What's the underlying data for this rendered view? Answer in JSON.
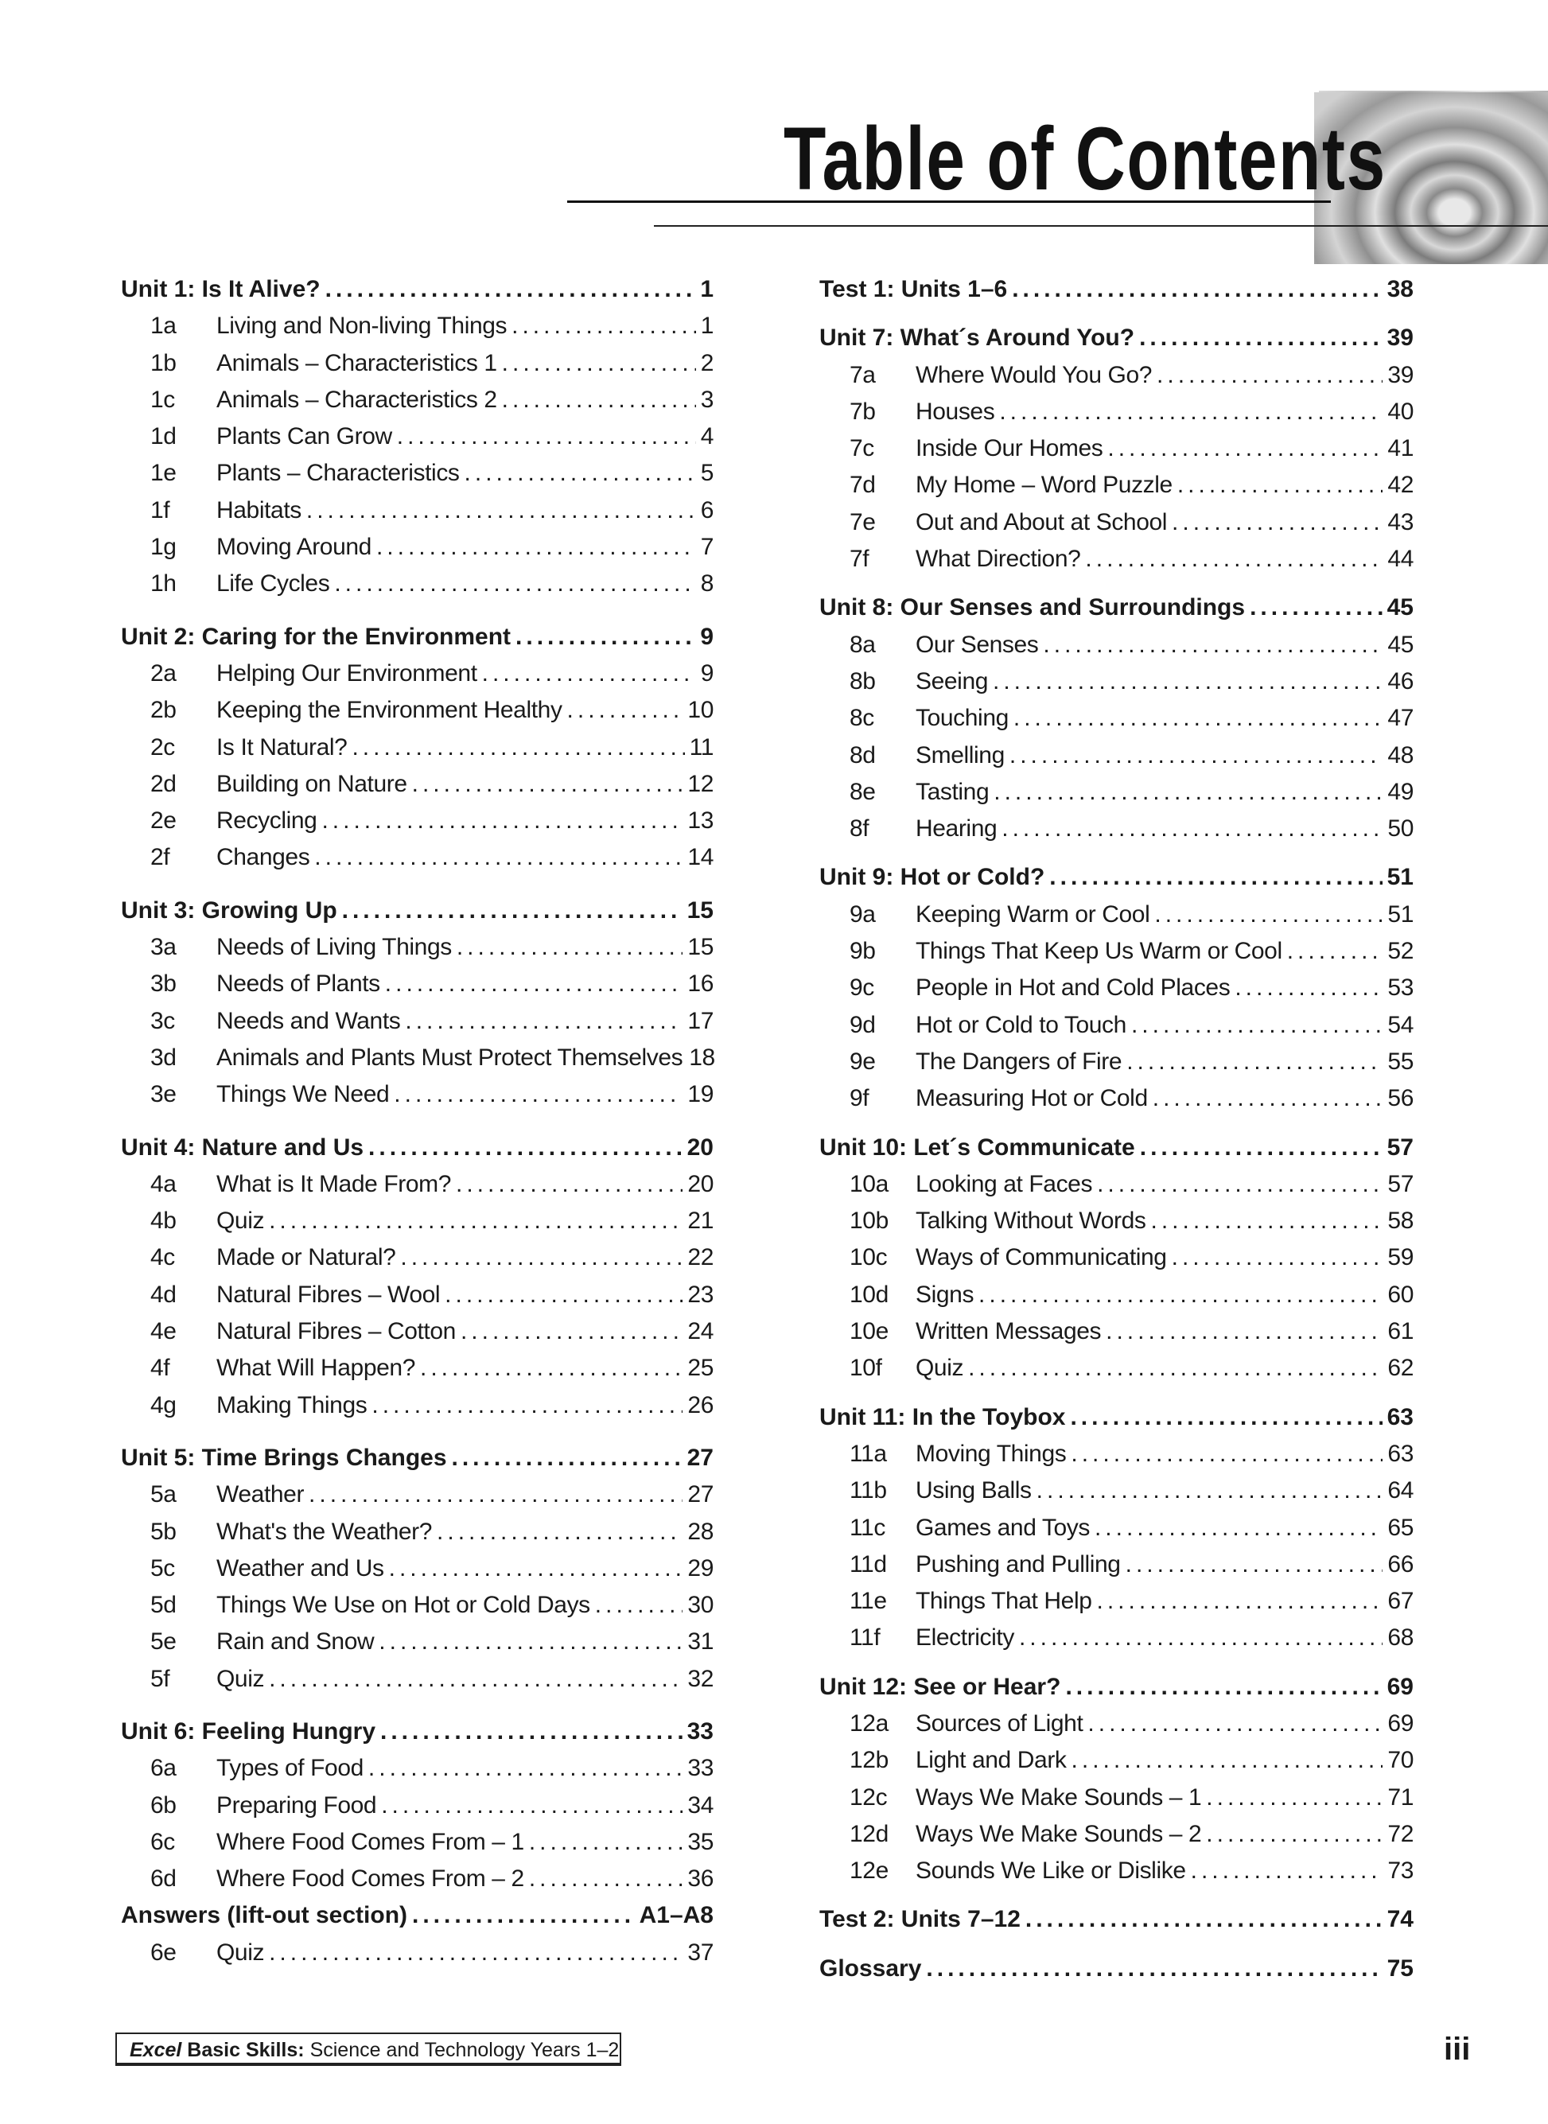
{
  "header": {
    "title": "Table of Contents"
  },
  "left_column": [
    {
      "type": "unit",
      "label": "Unit 1: Is It Alive?",
      "page": "1"
    },
    {
      "type": "item",
      "num": "1a",
      "label": "Living and Non-living Things",
      "page": "1"
    },
    {
      "type": "item",
      "num": "1b",
      "label": "Animals – Characteristics 1",
      "page": "2"
    },
    {
      "type": "item",
      "num": "1c",
      "label": "Animals – Characteristics 2",
      "page": "3"
    },
    {
      "type": "item",
      "num": "1d",
      "label": "Plants Can Grow",
      "page": "4"
    },
    {
      "type": "item",
      "num": "1e",
      "label": "Plants – Characteristics",
      "page": "5"
    },
    {
      "type": "item",
      "num": "1f",
      "label": "Habitats",
      "page": "6"
    },
    {
      "type": "item",
      "num": "1g",
      "label": "Moving Around",
      "page": "7"
    },
    {
      "type": "item",
      "num": "1h",
      "label": "Life Cycles",
      "page": "8"
    },
    {
      "type": "unit",
      "label": "Unit 2: Caring for the Environment",
      "page": "9"
    },
    {
      "type": "item",
      "num": "2a",
      "label": "Helping Our Environment",
      "page": "9"
    },
    {
      "type": "item",
      "num": "2b",
      "label": "Keeping the Environment Healthy",
      "page": "10"
    },
    {
      "type": "item",
      "num": "2c",
      "label": "Is It Natural?",
      "page": "11"
    },
    {
      "type": "item",
      "num": "2d",
      "label": "Building on Nature",
      "page": "12"
    },
    {
      "type": "item",
      "num": "2e",
      "label": "Recycling",
      "page": "13"
    },
    {
      "type": "item",
      "num": "2f",
      "label": "Changes",
      "page": "14"
    },
    {
      "type": "unit",
      "label": "Unit 3: Growing Up",
      "page": "15"
    },
    {
      "type": "item",
      "num": "3a",
      "label": "Needs of Living Things",
      "page": "15"
    },
    {
      "type": "item",
      "num": "3b",
      "label": "Needs of Plants",
      "page": "16"
    },
    {
      "type": "item",
      "num": "3c",
      "label": "Needs and Wants",
      "page": "17"
    },
    {
      "type": "item",
      "num": "3d",
      "label": "Animals and Plants Must Protect Themselves",
      "page": "18",
      "nodots": true
    },
    {
      "type": "item",
      "num": "3e",
      "label": "Things We Need",
      "page": "19"
    },
    {
      "type": "unit",
      "label": "Unit 4: Nature and Us",
      "page": "20"
    },
    {
      "type": "item",
      "num": "4a",
      "label": "What is It Made From?",
      "page": "20"
    },
    {
      "type": "item",
      "num": "4b",
      "label": "Quiz",
      "page": "21"
    },
    {
      "type": "item",
      "num": "4c",
      "label": "Made or Natural?",
      "page": "22"
    },
    {
      "type": "item",
      "num": "4d",
      "label": "Natural Fibres – Wool",
      "page": "23"
    },
    {
      "type": "item",
      "num": "4e",
      "label": "Natural Fibres – Cotton",
      "page": "24"
    },
    {
      "type": "item",
      "num": "4f",
      "label": "What Will Happen?",
      "page": "25"
    },
    {
      "type": "item",
      "num": "4g",
      "label": "Making Things",
      "page": "26"
    },
    {
      "type": "unit",
      "label": "Unit 5: Time Brings Changes",
      "page": "27"
    },
    {
      "type": "item",
      "num": "5a",
      "label": "Weather",
      "page": "27"
    },
    {
      "type": "item",
      "num": "5b",
      "label": "What's the Weather?",
      "page": "28"
    },
    {
      "type": "item",
      "num": "5c",
      "label": "Weather and Us",
      "page": "29"
    },
    {
      "type": "item",
      "num": "5d",
      "label": "Things We Use on Hot or Cold Days",
      "page": "30"
    },
    {
      "type": "item",
      "num": "5e",
      "label": "Rain and Snow",
      "page": "31"
    },
    {
      "type": "item",
      "num": "5f",
      "label": "Quiz",
      "page": "32"
    },
    {
      "type": "unit",
      "label": "Unit 6: Feeling Hungry",
      "page": "33"
    },
    {
      "type": "item",
      "num": "6a",
      "label": "Types of Food",
      "page": "33"
    },
    {
      "type": "item",
      "num": "6b",
      "label": "Preparing Food",
      "page": "34"
    },
    {
      "type": "item",
      "num": "6c",
      "label": "Where Food Comes From – 1",
      "page": "35"
    },
    {
      "type": "item",
      "num": "6d",
      "label": "Where Food Comes From – 2",
      "page": "36"
    },
    {
      "type": "unit",
      "label": "Answers (lift-out section)",
      "page": "A1–A8",
      "nogap": true
    },
    {
      "type": "item",
      "num": "6e",
      "label": "Quiz",
      "page": "37"
    }
  ],
  "right_column": [
    {
      "type": "unit",
      "label": "Test 1: Units 1–6",
      "page": "38"
    },
    {
      "type": "unit",
      "label": "Unit 7: What´s Around You?",
      "page": "39"
    },
    {
      "type": "item",
      "num": "7a",
      "label": "Where Would You Go?",
      "page": "39"
    },
    {
      "type": "item",
      "num": "7b",
      "label": "Houses",
      "page": "40"
    },
    {
      "type": "item",
      "num": "7c",
      "label": "Inside Our Homes",
      "page": "41"
    },
    {
      "type": "item",
      "num": "7d",
      "label": "My Home – Word Puzzle",
      "page": "42"
    },
    {
      "type": "item",
      "num": "7e",
      "label": "Out and About at School",
      "page": "43"
    },
    {
      "type": "item",
      "num": "7f",
      "label": "What Direction?",
      "page": "44"
    },
    {
      "type": "unit",
      "label": "Unit 8: Our Senses and Surroundings",
      "page": "45"
    },
    {
      "type": "item",
      "num": "8a",
      "label": "Our Senses",
      "page": "45"
    },
    {
      "type": "item",
      "num": "8b",
      "label": "Seeing",
      "page": "46"
    },
    {
      "type": "item",
      "num": "8c",
      "label": "Touching",
      "page": "47"
    },
    {
      "type": "item",
      "num": "8d",
      "label": "Smelling",
      "page": "48"
    },
    {
      "type": "item",
      "num": "8e",
      "label": "Tasting",
      "page": "49"
    },
    {
      "type": "item",
      "num": "8f",
      "label": "Hearing",
      "page": "50"
    },
    {
      "type": "unit",
      "label": "Unit 9: Hot or Cold?",
      "page": "51"
    },
    {
      "type": "item",
      "num": "9a",
      "label": "Keeping Warm or Cool",
      "page": "51"
    },
    {
      "type": "item",
      "num": "9b",
      "label": "Things That Keep Us Warm or Cool",
      "page": "52"
    },
    {
      "type": "item",
      "num": "9c",
      "label": "People in Hot and Cold Places",
      "page": "53"
    },
    {
      "type": "item",
      "num": "9d",
      "label": "Hot or Cold to Touch",
      "page": "54"
    },
    {
      "type": "item",
      "num": "9e",
      "label": "The Dangers of Fire",
      "page": "55"
    },
    {
      "type": "item",
      "num": "9f",
      "label": "Measuring Hot or Cold",
      "page": "56"
    },
    {
      "type": "unit",
      "label": "Unit 10: Let´s Communicate",
      "page": "57"
    },
    {
      "type": "item",
      "num": "10a",
      "label": "Looking at Faces",
      "page": "57"
    },
    {
      "type": "item",
      "num": "10b",
      "label": "Talking Without Words",
      "page": "58"
    },
    {
      "type": "item",
      "num": "10c",
      "label": "Ways of Communicating",
      "page": "59"
    },
    {
      "type": "item",
      "num": "10d",
      "label": "Signs",
      "page": "60"
    },
    {
      "type": "item",
      "num": "10e",
      "label": "Written Messages",
      "page": "61"
    },
    {
      "type": "item",
      "num": "10f",
      "label": "Quiz",
      "page": "62"
    },
    {
      "type": "unit",
      "label": "Unit 11: In the Toybox",
      "page": "63"
    },
    {
      "type": "item",
      "num": "11a",
      "label": "Moving Things",
      "page": "63"
    },
    {
      "type": "item",
      "num": "11b",
      "label": "Using Balls",
      "page": "64"
    },
    {
      "type": "item",
      "num": "11c",
      "label": "Games and Toys",
      "page": "65"
    },
    {
      "type": "item",
      "num": "11d",
      "label": "Pushing and Pulling",
      "page": "66"
    },
    {
      "type": "item",
      "num": "11e",
      "label": "Things That Help",
      "page": "67"
    },
    {
      "type": "item",
      "num": "11f",
      "label": "Electricity",
      "page": "68"
    },
    {
      "type": "unit",
      "label": "Unit 12: See or Hear?",
      "page": "69"
    },
    {
      "type": "item",
      "num": "12a",
      "label": "Sources of Light",
      "page": "69"
    },
    {
      "type": "item",
      "num": "12b",
      "label": "Light and Dark",
      "page": "70"
    },
    {
      "type": "item",
      "num": "12c",
      "label": "Ways We Make Sounds – 1",
      "page": "71"
    },
    {
      "type": "item",
      "num": "12d",
      "label": "Ways We Make Sounds – 2",
      "page": "72"
    },
    {
      "type": "item",
      "num": "12e",
      "label": "Sounds We Like or Dislike",
      "page": "73"
    },
    {
      "type": "unit",
      "label": "Test 2: Units 7–12",
      "page": "74"
    },
    {
      "type": "unit",
      "label": "Glossary",
      "page": "75"
    }
  ],
  "footer": {
    "brand": "Excel",
    "series": "Basic Skills:",
    "subtitle": "Science and Technology Years 1–2",
    "page_number": "iii"
  }
}
